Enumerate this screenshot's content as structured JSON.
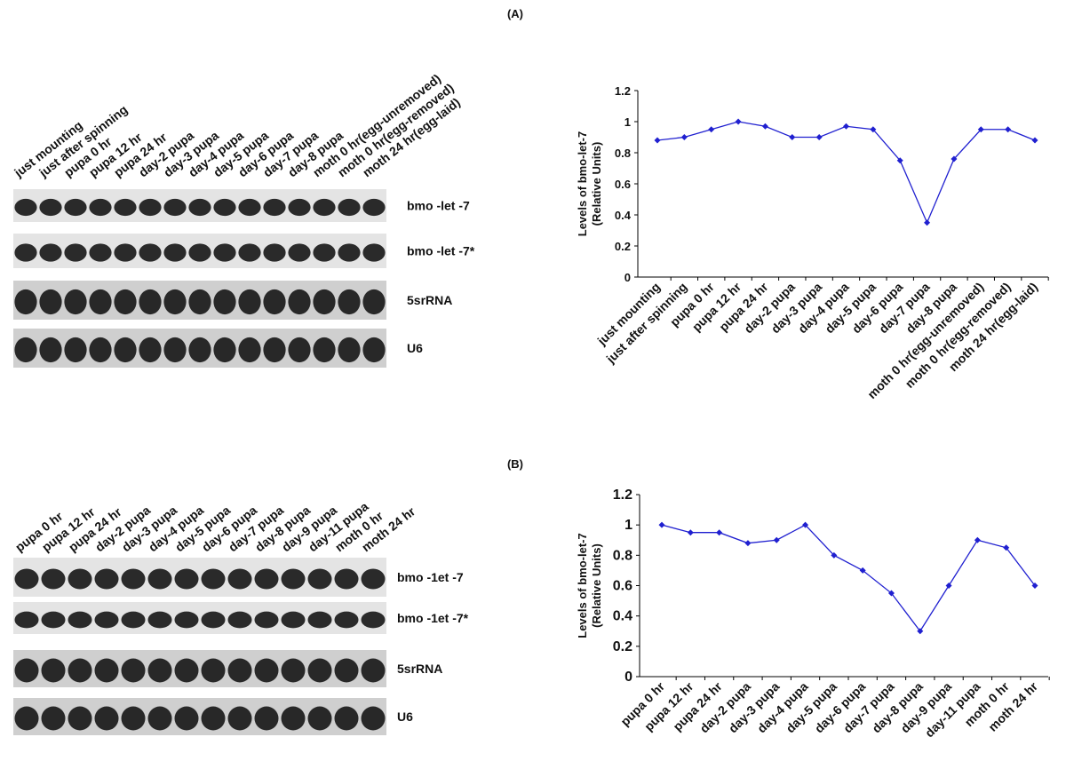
{
  "panels": [
    {
      "label": "(A)",
      "lanes": [
        "just mounting",
        "just after spinning",
        "pupa 0 hr",
        "pupa 12 hr",
        "pupa 24 hr",
        "day-2 pupa",
        "day-3 pupa",
        "day-4 pupa",
        "day-5 pupa",
        "day-6 pupa",
        "day-7 pupa",
        "day-8 pupa",
        "moth 0 hr(egg-unremoved)",
        "moth 0 hr(egg-removed)",
        "moth 24 hr(egg-laid)"
      ],
      "rows": [
        "bmo  -let -7",
        "bmo  -let -7*",
        "5srRNA",
        "U6"
      ]
    },
    {
      "label": "(B)",
      "lanes": [
        "pupa 0 hr",
        "pupa 12 hr",
        "pupa 24 hr",
        "day-2 pupa",
        "day-3 pupa",
        "day-4 pupa",
        "day-5 pupa",
        "day-6 pupa",
        "day-7 pupa",
        "day-8 pupa",
        "day-9 pupa",
        "day-11 pupa",
        "moth 0 hr",
        "moth 24 hr"
      ],
      "rows": [
        "bmo  -1et -7",
        "bmo  -1et -7*",
        "5srRNA",
        "U6"
      ]
    }
  ],
  "chart_data": [
    {
      "type": "line",
      "ylabel": [
        "Levels of bmo-let-7",
        "(Relative Units)"
      ],
      "categories": [
        "just mounting",
        "just after spinning",
        "pupa 0 hr",
        "pupa 12 hr",
        "pupa 24 hr",
        "day-2 pupa",
        "day-3 pupa",
        "day-4 pupa",
        "day-5 pupa",
        "day-6 pupa",
        "day-7 pupa",
        "day-8 pupa",
        "moth 0 hr(egg-unremoved)",
        "moth 0 hr(egg-removed)",
        "moth 24 hr(egg-laid)"
      ],
      "values": [
        0.88,
        0.9,
        0.95,
        1.0,
        0.97,
        0.9,
        0.9,
        0.97,
        0.95,
        0.75,
        0.35,
        0.76,
        0.95,
        0.95,
        0.88
      ],
      "color": "#2020d0",
      "ylim": [
        0,
        1.2
      ],
      "yticks": [
        0,
        0.2,
        0.4,
        0.6,
        0.8,
        1,
        1.2
      ]
    },
    {
      "type": "line",
      "ylabel": [
        "Levels of bmo-let-7",
        "(Relative Units)"
      ],
      "categories": [
        "pupa 0 hr",
        "pupa 12 hr",
        "pupa 24 hr",
        "day-2 pupa",
        "day-3 pupa",
        "day-4 pupa",
        "day-5 pupa",
        "day-6 pupa",
        "day-7 pupa",
        "day-8 pupa",
        "day-9 pupa",
        "day-11 pupa",
        "moth 0 hr",
        "moth 24 hr"
      ],
      "values": [
        1.0,
        0.95,
        0.95,
        0.88,
        0.9,
        1.0,
        0.8,
        0.7,
        0.55,
        0.3,
        0.6,
        0.9,
        0.85,
        0.6
      ],
      "color": "#2020d0",
      "ylim": [
        0,
        1.2
      ],
      "yticks": [
        0,
        0.2,
        0.4,
        0.6,
        0.8,
        1,
        1.2
      ]
    }
  ]
}
